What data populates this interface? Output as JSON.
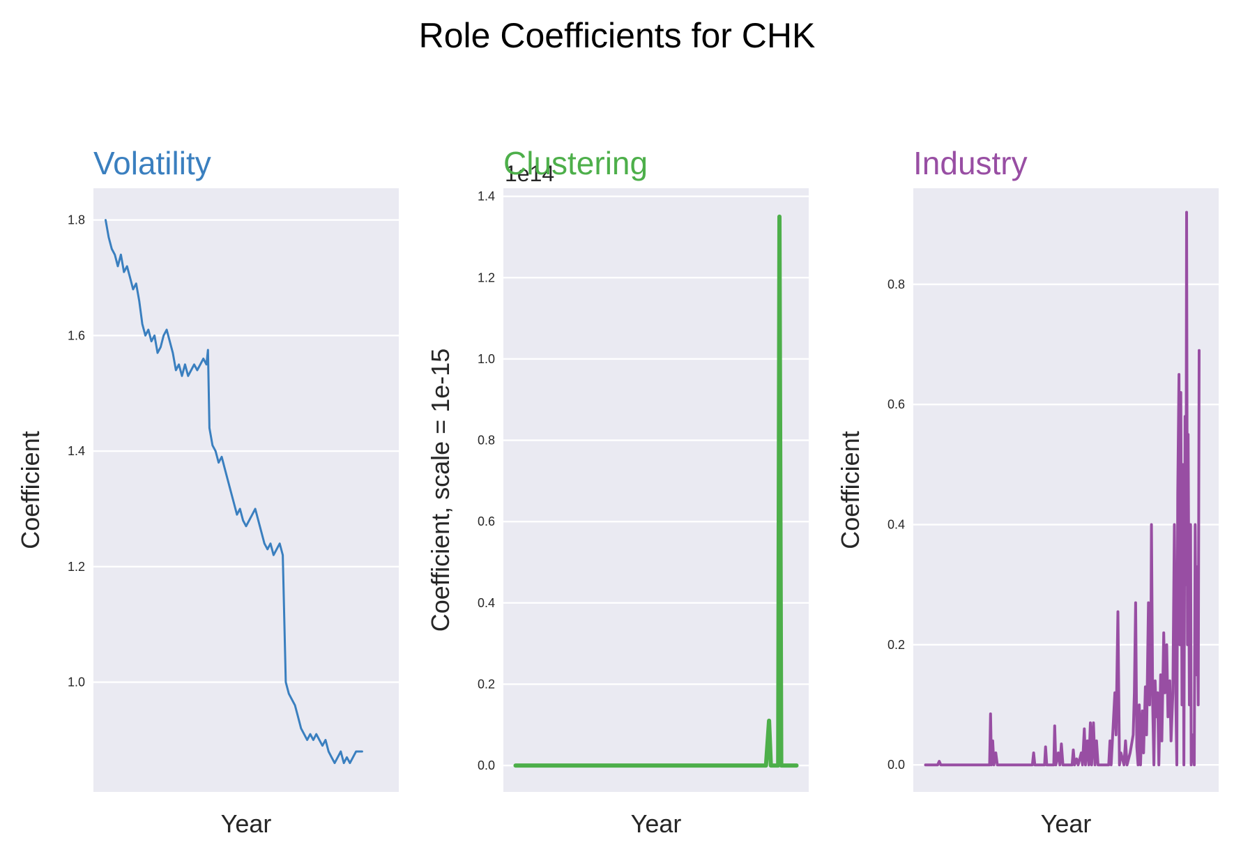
{
  "title": "Role Coefficients for CHK",
  "chart_data": [
    {
      "type": "line",
      "title": "Volatility",
      "color": "#3a7fbf",
      "xlabel": "Year",
      "ylabel": "Coefficient",
      "xlim": [
        0,
        100
      ],
      "ylim": [
        0.81,
        1.855
      ],
      "yticks": [
        1.0,
        1.2,
        1.4,
        1.6,
        1.8
      ],
      "ytick_labels": [
        "1.0",
        "1.2",
        "1.4",
        "1.6",
        "1.8"
      ],
      "grid": true,
      "series": [
        {
          "points": [
            [
              4,
              1.8
            ],
            [
              5,
              1.77
            ],
            [
              6,
              1.75
            ],
            [
              7,
              1.74
            ],
            [
              8,
              1.72
            ],
            [
              9,
              1.74
            ],
            [
              10,
              1.71
            ],
            [
              11,
              1.72
            ],
            [
              12,
              1.7
            ],
            [
              13,
              1.68
            ],
            [
              14,
              1.69
            ],
            [
              15,
              1.66
            ],
            [
              16,
              1.62
            ],
            [
              17,
              1.6
            ],
            [
              18,
              1.61
            ],
            [
              19,
              1.59
            ],
            [
              20,
              1.6
            ],
            [
              21,
              1.57
            ],
            [
              22,
              1.58
            ],
            [
              23,
              1.6
            ],
            [
              24,
              1.61
            ],
            [
              25,
              1.59
            ],
            [
              26,
              1.57
            ],
            [
              27,
              1.54
            ],
            [
              28,
              1.55
            ],
            [
              29,
              1.53
            ],
            [
              30,
              1.55
            ],
            [
              31,
              1.53
            ],
            [
              32,
              1.54
            ],
            [
              33,
              1.55
            ],
            [
              34,
              1.54
            ],
            [
              35,
              1.55
            ],
            [
              36,
              1.56
            ],
            [
              37,
              1.55
            ],
            [
              37.5,
              1.575
            ],
            [
              38,
              1.44
            ],
            [
              39,
              1.41
            ],
            [
              40,
              1.4
            ],
            [
              41,
              1.38
            ],
            [
              42,
              1.39
            ],
            [
              43,
              1.37
            ],
            [
              44,
              1.35
            ],
            [
              45,
              1.33
            ],
            [
              46,
              1.31
            ],
            [
              47,
              1.29
            ],
            [
              48,
              1.3
            ],
            [
              49,
              1.28
            ],
            [
              50,
              1.27
            ],
            [
              51,
              1.28
            ],
            [
              52,
              1.29
            ],
            [
              53,
              1.3
            ],
            [
              54,
              1.28
            ],
            [
              55,
              1.26
            ],
            [
              56,
              1.24
            ],
            [
              57,
              1.23
            ],
            [
              58,
              1.24
            ],
            [
              59,
              1.22
            ],
            [
              60,
              1.23
            ],
            [
              61,
              1.24
            ],
            [
              62,
              1.22
            ],
            [
              63,
              1.0
            ],
            [
              64,
              0.98
            ],
            [
              65,
              0.97
            ],
            [
              66,
              0.96
            ],
            [
              67,
              0.94
            ],
            [
              68,
              0.92
            ],
            [
              69,
              0.91
            ],
            [
              70,
              0.9
            ],
            [
              71,
              0.91
            ],
            [
              72,
              0.9
            ],
            [
              73,
              0.91
            ],
            [
              74,
              0.9
            ],
            [
              75,
              0.89
            ],
            [
              76,
              0.9
            ],
            [
              77,
              0.88
            ],
            [
              78,
              0.87
            ],
            [
              79,
              0.86
            ],
            [
              80,
              0.87
            ],
            [
              81,
              0.88
            ],
            [
              82,
              0.86
            ],
            [
              83,
              0.87
            ],
            [
              84,
              0.86
            ],
            [
              85,
              0.87
            ],
            [
              86,
              0.88
            ],
            [
              87,
              0.88
            ],
            [
              88,
              0.88
            ]
          ]
        }
      ]
    },
    {
      "type": "line",
      "title": "Clustering",
      "color": "#4daf4a",
      "xlabel": "Year",
      "ylabel": "Coefficient, scale = 1e-15",
      "offset_text": "1e14",
      "xlim": [
        0,
        100
      ],
      "ylim": [
        -0.065,
        1.42
      ],
      "yticks": [
        0.0,
        0.2,
        0.4,
        0.6,
        0.8,
        1.0,
        1.2,
        1.4
      ],
      "ytick_labels": [
        "0.0",
        "0.2",
        "0.4",
        "0.6",
        "0.8",
        "1.0",
        "1.2",
        "1.4"
      ],
      "grid": true,
      "series": [
        {
          "points": [
            [
              4,
              0
            ],
            [
              86,
              0
            ],
            [
              87,
              0.11
            ],
            [
              87.6,
              0
            ],
            [
              90,
              0
            ],
            [
              90.4,
              1.35
            ],
            [
              91,
              0
            ],
            [
              96,
              0
            ]
          ]
        }
      ]
    },
    {
      "type": "line",
      "title": "Industry",
      "color": "#984ea3",
      "xlabel": "Year",
      "ylabel": "Coefficient",
      "xlim": [
        0,
        100
      ],
      "ylim": [
        -0.045,
        0.96
      ],
      "yticks": [
        0.0,
        0.2,
        0.4,
        0.6,
        0.8
      ],
      "ytick_labels": [
        "0.0",
        "0.2",
        "0.4",
        "0.6",
        "0.8"
      ],
      "grid": true,
      "series": [
        {
          "points": [
            [
              4,
              0
            ],
            [
              8,
              0
            ],
            [
              8.5,
              0.006
            ],
            [
              9,
              0
            ],
            [
              25,
              0
            ],
            [
              25.3,
              0.085
            ],
            [
              25.6,
              0
            ],
            [
              26,
              0.04
            ],
            [
              26.4,
              0
            ],
            [
              27,
              0.02
            ],
            [
              27.5,
              0
            ],
            [
              39,
              0
            ],
            [
              39.4,
              0.02
            ],
            [
              39.8,
              0
            ],
            [
              43,
              0
            ],
            [
              43.3,
              0.03
            ],
            [
              43.7,
              0
            ],
            [
              46,
              0
            ],
            [
              46.3,
              0.065
            ],
            [
              46.7,
              0
            ],
            [
              47.5,
              0.02
            ],
            [
              48,
              0
            ],
            [
              48.5,
              0.035
            ],
            [
              49,
              0
            ],
            [
              52,
              0
            ],
            [
              52.4,
              0.025
            ],
            [
              52.8,
              0
            ],
            [
              53.5,
              0.01
            ],
            [
              54,
              0
            ],
            [
              55,
              0.02
            ],
            [
              55.4,
              0
            ],
            [
              56,
              0.06
            ],
            [
              56.4,
              0
            ],
            [
              57,
              0.04
            ],
            [
              57.5,
              0
            ],
            [
              58,
              0.07
            ],
            [
              58.4,
              0
            ],
            [
              59,
              0.07
            ],
            [
              59.5,
              0
            ],
            [
              60,
              0.04
            ],
            [
              60.5,
              0
            ],
            [
              64,
              0
            ],
            [
              64.4,
              0.04
            ],
            [
              64.8,
              0
            ],
            [
              66,
              0.12
            ],
            [
              66.4,
              0.05
            ],
            [
              67,
              0.255
            ],
            [
              67.5,
              0
            ],
            [
              68,
              0.02
            ],
            [
              69,
              0
            ],
            [
              69.5,
              0.04
            ],
            [
              70,
              0
            ],
            [
              71,
              0.02
            ],
            [
              72,
              0.05
            ],
            [
              72.4,
              0.12
            ],
            [
              72.8,
              0.27
            ],
            [
              73.2,
              0.03
            ],
            [
              73.6,
              0
            ],
            [
              74,
              0.1
            ],
            [
              74.4,
              0
            ],
            [
              75,
              0.09
            ],
            [
              75.4,
              0.02
            ],
            [
              76,
              0.13
            ],
            [
              76.4,
              0.05
            ],
            [
              77,
              0.27
            ],
            [
              77.4,
              0.1
            ],
            [
              77.8,
              0.2
            ],
            [
              78,
              0.4
            ],
            [
              78.4,
              0.1
            ],
            [
              78.8,
              0
            ],
            [
              79.2,
              0.14
            ],
            [
              79.6,
              0.08
            ],
            [
              80,
              0.12
            ],
            [
              80.4,
              0
            ],
            [
              81,
              0.15
            ],
            [
              81.4,
              0.04
            ],
            [
              82,
              0.22
            ],
            [
              82.4,
              0.12
            ],
            [
              83,
              0.2
            ],
            [
              83.4,
              0.08
            ],
            [
              84,
              0.14
            ],
            [
              84.4,
              0.04
            ],
            [
              85,
              0.12
            ],
            [
              85.5,
              0.4
            ],
            [
              86,
              0.1
            ],
            [
              86.3,
              0
            ],
            [
              86.6,
              0.45
            ],
            [
              87,
              0.65
            ],
            [
              87.3,
              0.2
            ],
            [
              87.6,
              0.62
            ],
            [
              88,
              0.1
            ],
            [
              88.3,
              0.5
            ],
            [
              88.6,
              0
            ],
            [
              89,
              0.58
            ],
            [
              89.3,
              0.3
            ],
            [
              89.5,
              0.92
            ],
            [
              89.8,
              0.2
            ],
            [
              90,
              0.55
            ],
            [
              90.4,
              0.1
            ],
            [
              90.8,
              0.4
            ],
            [
              91,
              0
            ],
            [
              91.5,
              0.05
            ],
            [
              92,
              0
            ],
            [
              92.3,
              0.4
            ],
            [
              92.6,
              0.15
            ],
            [
              93,
              0.33
            ],
            [
              93.3,
              0.1
            ],
            [
              93.6,
              0.69
            ]
          ]
        }
      ]
    }
  ]
}
